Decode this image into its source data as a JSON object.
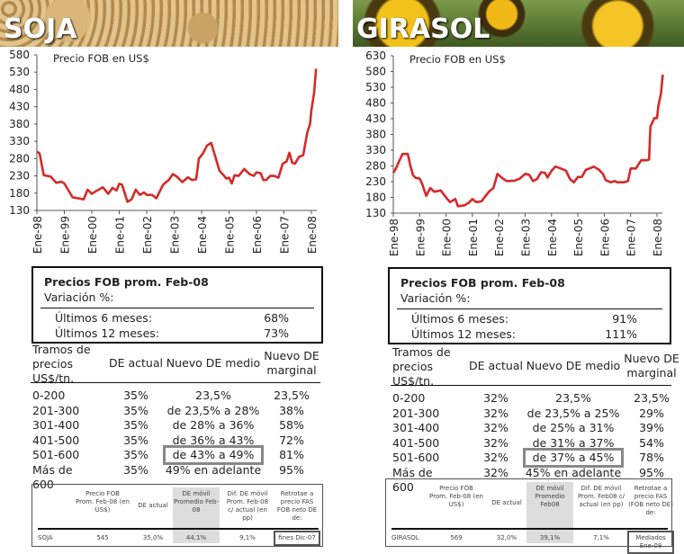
{
  "panels": [
    {
      "title": "SOJA",
      "chart_title": "Precio FOB en US$",
      "summary": {
        "title": "Precios FOB prom. Feb-08",
        "subtitle": "Variación %:",
        "rows": [
          {
            "label": "Últimos 6 meses:",
            "value": "68%"
          },
          {
            "label": "Últimos 12 meses:",
            "value": "73%"
          }
        ]
      },
      "table": {
        "headers": [
          "Tramos de precios US$/tn.",
          "DE actual",
          "Nuevo DE medio",
          "Nuevo DE marginal"
        ],
        "rows": [
          [
            "0-200",
            "35%",
            "23,5%",
            "23,5%"
          ],
          [
            "201-300",
            "35%",
            "de 23,5% a 28%",
            "38%"
          ],
          [
            "301-400",
            "35%",
            "de 28% a 36%",
            "58%"
          ],
          [
            "401-500",
            "35%",
            "de 36% a 43%",
            "72%"
          ],
          [
            "501-600",
            "35%",
            "de 43% a 49%",
            "81%"
          ],
          [
            "Más de 600",
            "35%",
            "49% en adelante",
            "95%"
          ]
        ],
        "highlight_row": 4
      },
      "bottom": {
        "headers": [
          "Precio FOB Prom. Feb-08 (en US$)",
          "DE actual",
          "DE móvil Promedio Feb-08",
          "Dif. DE móvil Prom. Feb-08 c/ actual (en pp)",
          "Retrotae a precio FAS FOB neto DE de:"
        ],
        "row": [
          "SOJA",
          "545",
          "35,0%",
          "44,1%",
          "9,1%",
          "fines Dic-07"
        ]
      }
    },
    {
      "title": "GIRASOL",
      "chart_title": "Precio FOB en US$",
      "summary": {
        "title": "Precios FOB prom. Feb-08",
        "subtitle": "Variación %:",
        "rows": [
          {
            "label": "Últimos 6 meses:",
            "value": "91%"
          },
          {
            "label": "Últimos 12 meses:",
            "value": "111%"
          }
        ]
      },
      "table": {
        "headers": [
          "Tramos de precios US$/tn.",
          "DE actual",
          "Nuevo DE medio",
          "Nuevo DE marginal"
        ],
        "rows": [
          [
            "0-200",
            "32%",
            "23,5%",
            "23,5%"
          ],
          [
            "201-300",
            "32%",
            "de 23,5% a 25%",
            "29%"
          ],
          [
            "301-400",
            "32%",
            "de 25% a 31%",
            "39%"
          ],
          [
            "401-500",
            "32%",
            "de 31% a 37%",
            "54%"
          ],
          [
            "501-600",
            "32%",
            "de 37% a 45%",
            "78%"
          ],
          [
            "Más de 600",
            "32%",
            "45% en adelante",
            "95%"
          ]
        ],
        "highlight_row": 4
      },
      "bottom": {
        "headers": [
          "Precio FOB Prom. Feb-08 (en US$)",
          "DE actual",
          "DE móvil Promedio Feb08",
          "Dif. DE móvil Prom. Feb08 c/ actual (en pp)",
          "Retrotae a precio FAS (FOB neto DE) de:"
        ],
        "row": [
          "GIRASOL",
          "569",
          "32,0%",
          "39,1%",
          "7,1%",
          "Mediados Ene-08"
        ]
      }
    }
  ],
  "chart_data": [
    {
      "type": "line",
      "title": "Precio FOB en US$",
      "series_color": "#d42a2a",
      "ylim": [
        130,
        580
      ],
      "yticks": [
        130,
        180,
        230,
        280,
        330,
        380,
        430,
        480,
        530,
        580
      ],
      "xticks": [
        "Ene-98",
        "Ene-99",
        "Ene-00",
        "Ene-01",
        "Ene-02",
        "Ene-03",
        "Ene-04",
        "Ene-05",
        "Ene-06",
        "Ene-07",
        "Ene-08"
      ],
      "x": [
        1998.0,
        1998.1,
        1998.25,
        1998.5,
        1998.7,
        1998.9,
        1999.0,
        1999.3,
        1999.5,
        1999.7,
        1999.85,
        2000.0,
        2000.2,
        2000.4,
        2000.6,
        2000.75,
        2000.9,
        2001.0,
        2001.1,
        2001.2,
        2001.3,
        2001.45,
        2001.6,
        2001.75,
        2001.9,
        2002.0,
        2002.2,
        2002.35,
        2002.6,
        2002.8,
        2002.95,
        2003.1,
        2003.3,
        2003.5,
        2003.65,
        2003.8,
        2003.9,
        2004.05,
        2004.2,
        2004.35,
        2004.5,
        2004.65,
        2004.8,
        2004.9,
        2005.0,
        2005.1,
        2005.2,
        2005.35,
        2005.55,
        2005.75,
        2005.9,
        2006.0,
        2006.15,
        2006.25,
        2006.35,
        2006.5,
        2006.65,
        2006.8,
        2006.95,
        2007.1,
        2007.2,
        2007.3,
        2007.4,
        2007.55,
        2007.7,
        2007.85,
        2007.95,
        2008.0,
        2008.1,
        2008.17
      ],
      "y": [
        300,
        295,
        232,
        228,
        210,
        213,
        208,
        168,
        165,
        162,
        190,
        178,
        188,
        197,
        178,
        195,
        188,
        207,
        205,
        180,
        155,
        162,
        190,
        175,
        182,
        175,
        175,
        165,
        205,
        218,
        235,
        228,
        212,
        226,
        218,
        220,
        280,
        295,
        318,
        325,
        285,
        245,
        232,
        222,
        225,
        208,
        232,
        230,
        250,
        235,
        230,
        240,
        238,
        218,
        218,
        230,
        230,
        225,
        265,
        272,
        297,
        268,
        265,
        285,
        290,
        355,
        380,
        420,
        470,
        540
      ]
    },
    {
      "type": "line",
      "title": "Precio FOB en US$",
      "series_color": "#d42a2a",
      "ylim": [
        130,
        630
      ],
      "yticks": [
        130,
        180,
        230,
        280,
        330,
        380,
        430,
        480,
        530,
        580,
        630
      ],
      "xticks": [
        "Ene-98",
        "Ene-99",
        "Ene-00",
        "Ene-01",
        "Ene-02",
        "Ene-03",
        "Ene-04",
        "Ene-05",
        "Ene-06",
        "Ene-07",
        "Ene-08"
      ],
      "x": [
        1998.0,
        1998.1,
        1998.25,
        1998.35,
        1998.55,
        1998.65,
        1998.75,
        1998.85,
        1999.0,
        1999.1,
        1999.25,
        1999.4,
        1999.55,
        1999.8,
        2000.0,
        2000.15,
        2000.35,
        2000.45,
        2000.7,
        2000.85,
        2001.0,
        2001.15,
        2001.35,
        2001.5,
        2001.65,
        2001.8,
        2001.95,
        2002.15,
        2002.3,
        2002.6,
        2002.8,
        2003.0,
        2003.15,
        2003.3,
        2003.45,
        2003.6,
        2003.75,
        2003.85,
        2004.0,
        2004.15,
        2004.35,
        2004.55,
        2004.7,
        2004.85,
        2005.0,
        2005.15,
        2005.3,
        2005.45,
        2005.6,
        2005.8,
        2005.95,
        2006.05,
        2006.25,
        2006.4,
        2006.5,
        2006.75,
        2006.9,
        2007.0,
        2007.2,
        2007.4,
        2007.6,
        2007.7,
        2007.75,
        2007.9,
        2008.0,
        2008.05,
        2008.15,
        2008.22
      ],
      "y": [
        258,
        272,
        300,
        318,
        318,
        280,
        250,
        242,
        240,
        222,
        185,
        210,
        198,
        202,
        180,
        165,
        175,
        152,
        155,
        162,
        175,
        165,
        168,
        185,
        200,
        210,
        255,
        240,
        232,
        233,
        240,
        255,
        252,
        232,
        238,
        260,
        258,
        243,
        265,
        278,
        272,
        265,
        238,
        228,
        245,
        245,
        268,
        272,
        278,
        268,
        255,
        235,
        228,
        232,
        228,
        228,
        232,
        272,
        272,
        298,
        298,
        300,
        405,
        432,
        432,
        470,
        510,
        570
      ]
    }
  ]
}
